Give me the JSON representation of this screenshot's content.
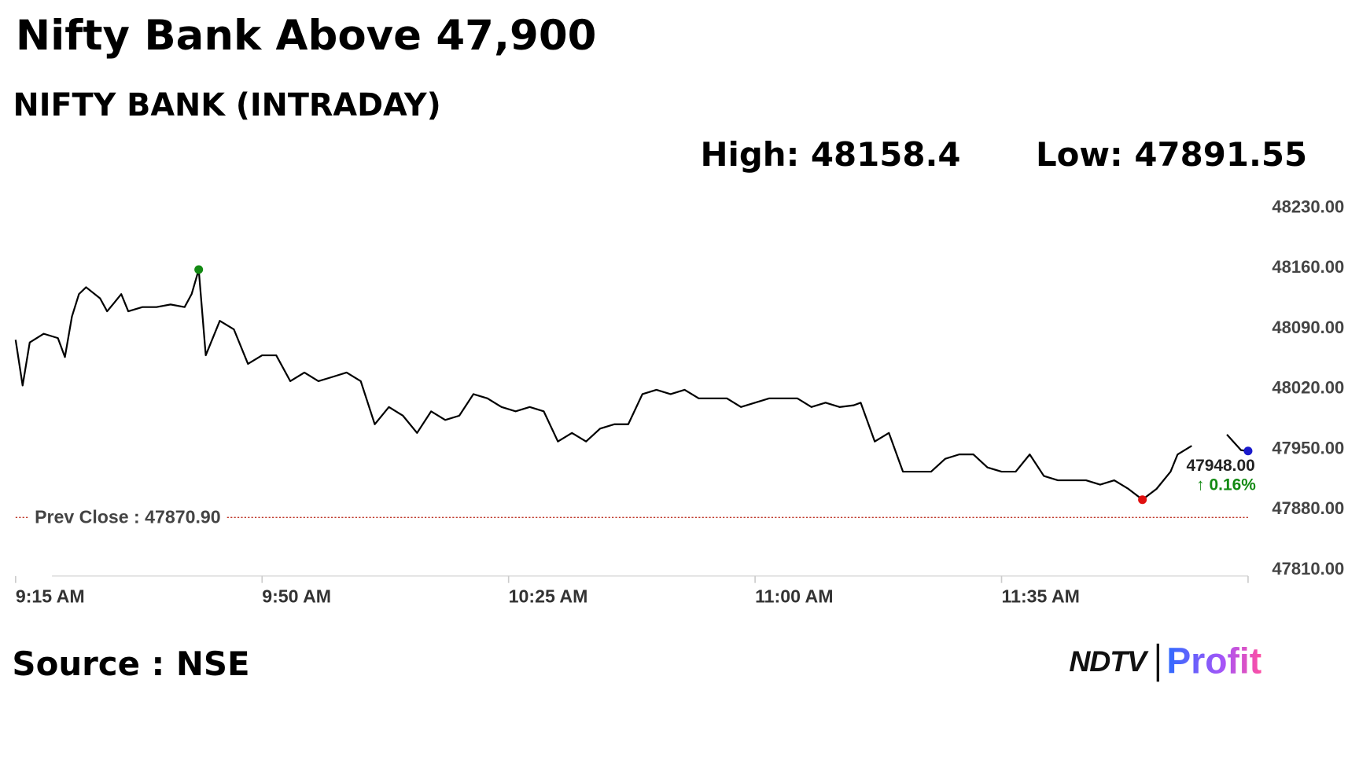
{
  "chart_data": {
    "type": "line",
    "title": "Nifty Bank Above 47,900",
    "subtitle": "NIFTY BANK (INTRADAY)",
    "high_label": "High: 48158.4",
    "low_label": "Low: 47891.55",
    "source": "Source : NSE",
    "logo": {
      "brand": "NDTV",
      "product": "Profit"
    },
    "x": [
      "09:15",
      "09:16",
      "09:17",
      "09:19",
      "09:21",
      "09:22",
      "09:23",
      "09:24",
      "09:25",
      "09:27",
      "09:28",
      "09:29",
      "09:30",
      "09:31",
      "09:33",
      "09:35",
      "09:37",
      "09:39",
      "09:40",
      "09:41",
      "09:42",
      "09:44",
      "09:46",
      "09:48",
      "09:50",
      "09:52",
      "09:54",
      "09:56",
      "09:58",
      "10:00",
      "10:02",
      "10:04",
      "10:06",
      "10:08",
      "10:10",
      "10:12",
      "10:14",
      "10:16",
      "10:18",
      "10:20",
      "10:22",
      "10:24",
      "10:26",
      "10:28",
      "10:30",
      "10:32",
      "10:34",
      "10:36",
      "10:38",
      "10:40",
      "10:42",
      "10:44",
      "10:46",
      "10:48",
      "10:50",
      "10:52",
      "10:54",
      "10:56",
      "10:58",
      "11:00",
      "11:02",
      "11:04",
      "11:06",
      "11:08",
      "11:10",
      "11:12",
      "11:14",
      "11:15",
      "11:17",
      "11:19",
      "11:21",
      "11:23",
      "11:25",
      "11:27",
      "11:29",
      "11:31",
      "11:33",
      "11:35",
      "11:37",
      "11:39",
      "11:41",
      "11:43",
      "11:45",
      "11:47",
      "11:49",
      "11:51",
      "11:53",
      "11:55",
      "11:57",
      "11:59",
      "12:00",
      "12:02",
      "12:05",
      "12:07",
      "12:09",
      "12:10"
    ],
    "series": [
      {
        "name": "NIFTY BANK",
        "color": "#000000",
        "values": [
          48077,
          48024,
          48074,
          48084,
          48079,
          48057,
          48104,
          48130,
          48138,
          48125,
          48110,
          48120,
          48130,
          48110,
          48115,
          48115,
          48118,
          48115,
          48130,
          48158.4,
          48059,
          48099,
          48089,
          48049,
          48059,
          48059,
          48029,
          48039,
          48029,
          48034,
          48039,
          48029,
          47979,
          47999,
          47989,
          47969,
          47994,
          47984,
          47989,
          48014,
          48009,
          47999,
          47994,
          47999,
          47994,
          47959,
          47969,
          47959,
          47974,
          47979,
          47979,
          48014,
          48019,
          48014,
          48019,
          48009,
          48009,
          48009,
          47999,
          48004,
          48009,
          48009,
          48009,
          47999,
          48004,
          47999,
          48001,
          48004,
          47959,
          47969,
          47924,
          47924,
          47924,
          47939,
          47944,
          47944,
          47929,
          47924,
          47924,
          47944,
          47919,
          47914,
          47914,
          47914,
          47909,
          47914,
          47904,
          47891.55,
          47904,
          47924,
          47944,
          47954,
          null,
          47967,
          47949,
          47948
        ]
      }
    ],
    "high_color": "#138a13",
    "low_color": "#e01010",
    "last_color": "#1a1acc",
    "last_price": "47948.00",
    "change": "↑ 0.16%",
    "change_color": "#138a13",
    "prev_close": {
      "value": 47870.9,
      "label": "Prev Close : 47870.90"
    },
    "prev_close_color": "#c0392b",
    "xlim": [
      "09:15",
      "12:10"
    ],
    "xticks": [
      {
        "value": "09:15",
        "label": "9:15 AM"
      },
      {
        "value": "09:50",
        "label": "9:50 AM"
      },
      {
        "value": "10:25",
        "label": "10:25 AM"
      },
      {
        "value": "11:00",
        "label": "11:00 AM"
      },
      {
        "value": "11:35",
        "label": "11:35 AM"
      }
    ],
    "ylim": [
      47810,
      48230
    ],
    "yticks": [
      {
        "value": 47810,
        "label": "47810.00"
      },
      {
        "value": 47880,
        "label": "47880.00"
      },
      {
        "value": 47950,
        "label": "47950.00"
      },
      {
        "value": 48020,
        "label": "48020.00"
      },
      {
        "value": 48090,
        "label": "48090.00"
      },
      {
        "value": 48160,
        "label": "48160.00"
      },
      {
        "value": 48230,
        "label": "48230.00"
      }
    ],
    "grid": false
  }
}
